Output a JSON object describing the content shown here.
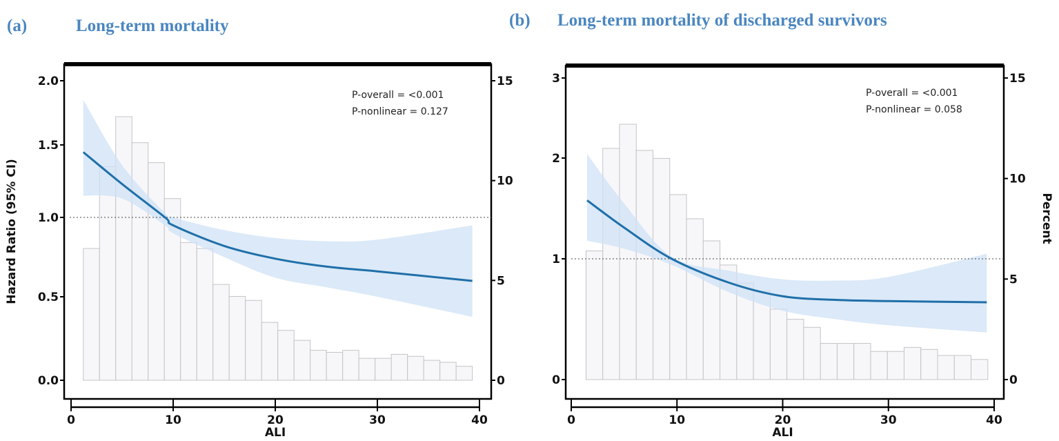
{
  "chart_data": [
    {
      "type": "line",
      "panel_label": "(a)",
      "title": "Long-term mortality",
      "xlabel": "ALI",
      "ylabel": "Hazard Ratio (95% CI)",
      "y2label": "",
      "xlim": [
        0,
        40
      ],
      "xticks": [
        "0",
        "10",
        "20",
        "30",
        "40"
      ],
      "yticks": [
        "0.0",
        "0.5",
        "1.0",
        "1.5",
        "2.0"
      ],
      "y2ticks": [
        "0",
        "5",
        "10",
        "15"
      ],
      "reference_line": 1.0,
      "annotations": [
        "P-overall = <0.001",
        "P-nonlinear = 0.127"
      ],
      "curve": {
        "x": [
          1.2,
          5,
          9.2,
          10,
          15,
          20,
          25,
          30,
          39.3
        ],
        "hr": [
          1.45,
          1.23,
          1.0,
          0.95,
          0.82,
          0.74,
          0.69,
          0.66,
          0.6
        ],
        "upper": [
          1.85,
          1.36,
          1.03,
          1.0,
          0.92,
          0.87,
          0.85,
          0.86,
          0.95
        ],
        "lower": [
          1.15,
          1.13,
          0.95,
          0.9,
          0.75,
          0.62,
          0.56,
          0.5,
          0.38
        ]
      },
      "histogram": {
        "start": 1.2,
        "end": 39.3,
        "percent": [
          6.6,
          10.7,
          13.2,
          11.9,
          10.9,
          9.1,
          6.9,
          6.6,
          4.8,
          4.2,
          4.0,
          2.9,
          2.5,
          2.0,
          1.5,
          1.4,
          1.5,
          1.1,
          1.1,
          1.3,
          1.2,
          1.0,
          0.9,
          0.7
        ]
      },
      "colors": {
        "line": "#1f6fa8",
        "band": "#cfe2f5",
        "bar_fill": "#f7f7f9",
        "bar_stroke": "#c4c4c8"
      }
    },
    {
      "type": "line",
      "panel_label": "(b)",
      "title": "Long-term mortality of discharged survivors",
      "xlabel": "ALI",
      "ylabel": "",
      "y2label": "Percent",
      "xlim": [
        0,
        40
      ],
      "xticks": [
        "0",
        "10",
        "20",
        "30",
        "40"
      ],
      "yticks": [
        "0",
        "1",
        "2",
        "3"
      ],
      "y2ticks": [
        "0",
        "5",
        "10",
        "15"
      ],
      "reference_line": 1.0,
      "annotations": [
        "P-overall = <0.001",
        "P-nonlinear = 0.058"
      ],
      "curve": {
        "x": [
          1.5,
          5,
          9.5,
          15,
          20,
          25,
          30,
          39.3
        ],
        "hr": [
          1.58,
          1.31,
          1.0,
          0.8,
          0.69,
          0.66,
          0.65,
          0.64
        ],
        "upper": [
          2.05,
          1.55,
          1.02,
          0.9,
          0.83,
          0.82,
          0.85,
          1.05
        ],
        "lower": [
          1.18,
          1.1,
          0.95,
          0.72,
          0.57,
          0.5,
          0.45,
          0.39
        ]
      },
      "histogram": {
        "start": 1.4,
        "end": 39.4,
        "percent": [
          6.4,
          11.5,
          12.7,
          11.4,
          11.0,
          9.2,
          8.0,
          6.9,
          5.7,
          4.8,
          4.4,
          3.5,
          3.0,
          2.6,
          1.8,
          1.8,
          1.8,
          1.4,
          1.4,
          1.6,
          1.5,
          1.2,
          1.2,
          1.0
        ]
      },
      "colors": {
        "line": "#1f6fa8",
        "band": "#cfe2f5",
        "bar_fill": "#f7f7f9",
        "bar_stroke": "#c4c4c8"
      }
    }
  ]
}
